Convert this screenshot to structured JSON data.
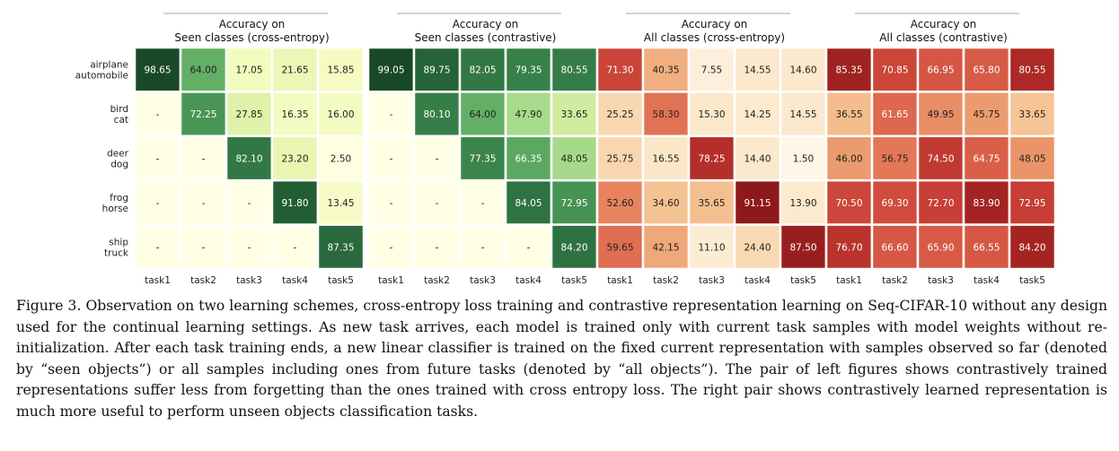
{
  "caption": "Figure 3. Observation on two learning schemes, cross-entropy loss training and contrastive representation learning on Seq-CIFAR-10 without any design used for the continual learning settings. As new task arrives, each model is trained only with current task samples with model weights without re-initialization. After each task training ends, a new linear classifier is trained on the fixed current representation with samples observed so far (denoted by “seen objects”) or all samples including ones from future tasks (denoted by “all objects”). The pair of left figures shows contrastively trained representations suffer less from forgetting than the ones trained with cross entropy loss. The right pair shows contrastively learned representation is much more useful to perform unseen objects classification tasks.",
  "row_labels": [
    [
      "airplane",
      "automobile"
    ],
    [
      "bird",
      "cat"
    ],
    [
      "deer",
      "dog"
    ],
    [
      "frog",
      "horse"
    ],
    [
      "ship",
      "truck"
    ]
  ],
  "chart_data": [
    {
      "type": "heatmap",
      "title": [
        "Accuracy on",
        "Seen classes (cross-entropy)"
      ],
      "colormap": "greens",
      "categories": [
        "task1",
        "task2",
        "task3",
        "task4",
        "task5"
      ],
      "values": [
        [
          "98.65",
          "64.00",
          "17.05",
          "21.65",
          "15.85"
        ],
        [
          "-",
          "72.25",
          "27.85",
          "16.35",
          "16.00"
        ],
        [
          "-",
          "-",
          "82.10",
          "23.20",
          "2.50"
        ],
        [
          "-",
          "-",
          "-",
          "91.80",
          "13.45"
        ],
        [
          "-",
          "-",
          "-",
          "-",
          "87.35"
        ]
      ]
    },
    {
      "type": "heatmap",
      "title": [
        "Accuracy on",
        "Seen classes (contrastive)"
      ],
      "colormap": "greens",
      "categories": [
        "task1",
        "task2",
        "task3",
        "task4",
        "task5"
      ],
      "values": [
        [
          "99.05",
          "89.75",
          "82.05",
          "79.35",
          "80.55"
        ],
        [
          "-",
          "80.10",
          "64.00",
          "47.90",
          "33.65"
        ],
        [
          "-",
          "-",
          "77.35",
          "66.35",
          "48.05"
        ],
        [
          "-",
          "-",
          "-",
          "84.05",
          "72.95"
        ],
        [
          "-",
          "-",
          "-",
          "-",
          "84.20"
        ]
      ]
    },
    {
      "type": "heatmap",
      "title": [
        "Accuracy on",
        "All classes (cross-entropy)"
      ],
      "colormap": "reds",
      "categories": [
        "task1",
        "task2",
        "task3",
        "task4",
        "task5"
      ],
      "values": [
        [
          "71.30",
          "40.35",
          "7.55",
          "14.55",
          "14.60"
        ],
        [
          "25.25",
          "58.30",
          "15.30",
          "14.25",
          "14.55"
        ],
        [
          "25.75",
          "16.55",
          "78.25",
          "14.40",
          "1.50"
        ],
        [
          "52.60",
          "34.60",
          "35.65",
          "91.15",
          "13.90"
        ],
        [
          "59.65",
          "42.15",
          "11.10",
          "24.40",
          "87.50"
        ]
      ]
    },
    {
      "type": "heatmap",
      "title": [
        "Accuracy on",
        "All classes (contrastive)"
      ],
      "colormap": "reds",
      "categories": [
        "task1",
        "task2",
        "task3",
        "task4",
        "task5"
      ],
      "values": [
        [
          "85.35",
          "70.85",
          "66.95",
          "65.80",
          "80.55"
        ],
        [
          "36.55",
          "61.65",
          "49.95",
          "45.75",
          "33.65"
        ],
        [
          "46.00",
          "56.75",
          "74.50",
          "64.75",
          "48.05"
        ],
        [
          "70.50",
          "69.30",
          "72.70",
          "83.90",
          "72.95"
        ],
        [
          "76.70",
          "66.60",
          "65.90",
          "66.55",
          "84.20"
        ]
      ]
    }
  ]
}
